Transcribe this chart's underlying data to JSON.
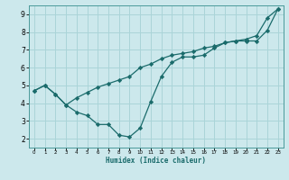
{
  "xlabel": "Humidex (Indice chaleur)",
  "ylabel": "",
  "xlim": [
    -0.5,
    23.5
  ],
  "ylim": [
    1.5,
    9.5
  ],
  "xticks": [
    0,
    1,
    2,
    3,
    4,
    5,
    6,
    7,
    8,
    9,
    10,
    11,
    12,
    13,
    14,
    15,
    16,
    17,
    18,
    19,
    20,
    21,
    22,
    23
  ],
  "yticks": [
    2,
    3,
    4,
    5,
    6,
    7,
    8,
    9
  ],
  "background_color": "#cce8ec",
  "grid_color": "#aad4d8",
  "line_color": "#1a6b6b",
  "line1_x": [
    0,
    1,
    2,
    3,
    4,
    5,
    6,
    7,
    8,
    9,
    10,
    11,
    12,
    13,
    14,
    15,
    16,
    17,
    18,
    19,
    20,
    21,
    22,
    23
  ],
  "line1_y": [
    4.7,
    5.0,
    4.5,
    3.9,
    3.5,
    3.3,
    2.8,
    2.8,
    2.2,
    2.1,
    2.6,
    4.1,
    5.5,
    6.3,
    6.6,
    6.6,
    6.7,
    7.1,
    7.4,
    7.5,
    7.5,
    7.5,
    8.1,
    9.3
  ],
  "line2_x": [
    0,
    1,
    2,
    3,
    4,
    5,
    6,
    7,
    8,
    9,
    10,
    11,
    12,
    13,
    14,
    15,
    16,
    17,
    18,
    19,
    20,
    21,
    22,
    23
  ],
  "line2_y": [
    4.7,
    5.0,
    4.5,
    3.9,
    4.3,
    4.6,
    4.9,
    5.1,
    5.3,
    5.5,
    6.0,
    6.2,
    6.5,
    6.7,
    6.8,
    6.9,
    7.1,
    7.2,
    7.4,
    7.5,
    7.6,
    7.8,
    8.8,
    9.3
  ],
  "marker": "D",
  "markersize": 2.2,
  "linewidth": 0.9,
  "tick_fontsize_x": 4.0,
  "tick_fontsize_y": 5.5,
  "xlabel_fontsize": 5.5,
  "spine_color": "#4a9a9a"
}
